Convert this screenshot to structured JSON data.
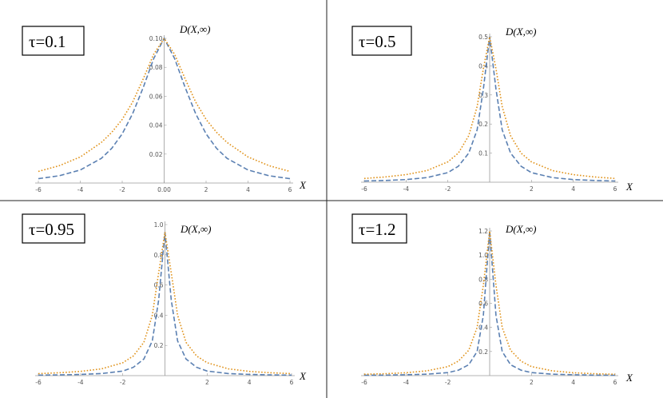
{
  "chart_data": [
    {
      "type": "line",
      "tau_label": "τ=0.1",
      "ylabel": "D(X,∞)",
      "xlabel": "X",
      "xlim": [
        -6,
        6
      ],
      "ylim": [
        0,
        0.1
      ],
      "x_ticks": [
        "-6",
        "-4",
        "-2",
        "0.00",
        "2",
        "4",
        "6"
      ],
      "y_ticks": [
        "0.02",
        "0.04",
        "0.06",
        "0.08",
        "0.10"
      ],
      "y_tick_values": [
        0.02,
        0.04,
        0.06,
        0.08,
        0.1
      ],
      "x": [
        -6,
        -5,
        -4,
        -3,
        -2.5,
        -2,
        -1.5,
        -1,
        -0.5,
        0,
        0.5,
        1,
        1.5,
        2,
        2.5,
        3,
        4,
        5,
        6
      ],
      "series": [
        {
          "color": "#5b80b2",
          "style": "dashed",
          "values": [
            0.003,
            0.005,
            0.009,
            0.017,
            0.024,
            0.034,
            0.048,
            0.066,
            0.086,
            0.1,
            0.086,
            0.066,
            0.048,
            0.034,
            0.024,
            0.017,
            0.009,
            0.005,
            0.003
          ]
        },
        {
          "color": "#e0921a",
          "style": "dotted",
          "values": [
            0.008,
            0.012,
            0.018,
            0.028,
            0.035,
            0.044,
            0.056,
            0.072,
            0.089,
            0.1,
            0.089,
            0.072,
            0.056,
            0.044,
            0.035,
            0.028,
            0.018,
            0.012,
            0.008
          ]
        }
      ]
    },
    {
      "type": "line",
      "tau_label": "τ=0.5",
      "ylabel": "D(X,∞)",
      "xlabel": "X",
      "xlim": [
        -6,
        6
      ],
      "ylim": [
        0,
        0.5
      ],
      "x_ticks": [
        "-6",
        "-4",
        "-2",
        "2",
        "4",
        "6"
      ],
      "y_ticks": [
        "0.1",
        "0.2",
        "0.3",
        "0.4",
        "0.5"
      ],
      "y_tick_values": [
        0.1,
        0.2,
        0.3,
        0.4,
        0.5
      ],
      "x": [
        -6,
        -5,
        -4,
        -3,
        -2,
        -1.5,
        -1,
        -0.6,
        -0.3,
        0,
        0.3,
        0.6,
        1,
        1.5,
        2,
        3,
        4,
        5,
        6
      ],
      "series": [
        {
          "color": "#5b80b2",
          "style": "dashed",
          "values": [
            0.004,
            0.006,
            0.009,
            0.016,
            0.033,
            0.055,
            0.1,
            0.18,
            0.32,
            0.5,
            0.32,
            0.18,
            0.1,
            0.055,
            0.033,
            0.016,
            0.009,
            0.006,
            0.004
          ]
        },
        {
          "color": "#e0921a",
          "style": "dotted",
          "values": [
            0.013,
            0.018,
            0.026,
            0.04,
            0.07,
            0.1,
            0.16,
            0.26,
            0.39,
            0.5,
            0.39,
            0.26,
            0.16,
            0.1,
            0.07,
            0.04,
            0.026,
            0.018,
            0.013
          ]
        }
      ]
    },
    {
      "type": "line",
      "tau_label": "τ=0.95",
      "ylabel": "D(X,∞)",
      "xlabel": "X",
      "xlim": [
        -6,
        6
      ],
      "ylim": [
        0,
        1.0
      ],
      "x_ticks": [
        "-6",
        "-4",
        "-2",
        "2",
        "4",
        "6"
      ],
      "y_ticks": [
        "0.2",
        "0.4",
        "0.6",
        "0.8",
        "1.0"
      ],
      "y_tick_values": [
        0.2,
        0.4,
        0.6,
        0.8,
        1.0
      ],
      "x": [
        -6,
        -5,
        -4,
        -3,
        -2,
        -1.5,
        -1,
        -0.6,
        -0.3,
        0,
        0.3,
        0.6,
        1,
        1.5,
        2,
        3,
        4,
        5,
        6
      ],
      "series": [
        {
          "color": "#5b80b2",
          "style": "dashed",
          "values": [
            0.003,
            0.005,
            0.008,
            0.014,
            0.03,
            0.055,
            0.11,
            0.23,
            0.5,
            0.95,
            0.5,
            0.23,
            0.11,
            0.055,
            0.03,
            0.014,
            0.008,
            0.005,
            0.003
          ]
        },
        {
          "color": "#e0921a",
          "style": "dotted",
          "values": [
            0.013,
            0.019,
            0.028,
            0.045,
            0.085,
            0.13,
            0.22,
            0.4,
            0.68,
            0.95,
            0.68,
            0.4,
            0.22,
            0.13,
            0.085,
            0.045,
            0.028,
            0.019,
            0.013
          ]
        }
      ]
    },
    {
      "type": "line",
      "tau_label": "τ=1.2",
      "ylabel": "D(X,∞)",
      "xlabel": "X",
      "xlim": [
        -6,
        6
      ],
      "ylim": [
        0,
        1.2
      ],
      "x_ticks": [
        "-6",
        "-4",
        "-2",
        "2",
        "4",
        "6"
      ],
      "y_ticks": [
        "0.2",
        "0.4",
        "0.6",
        "0.8",
        "1.0",
        "1.2"
      ],
      "y_tick_values": [
        0.2,
        0.4,
        0.6,
        0.8,
        1.0,
        1.2
      ],
      "x": [
        -6,
        -5,
        -4,
        -3,
        -2,
        -1.5,
        -1,
        -0.6,
        -0.3,
        0,
        0.3,
        0.6,
        1,
        1.5,
        2,
        3,
        4,
        5,
        6
      ],
      "series": [
        {
          "color": "#5b80b2",
          "style": "dashed",
          "values": [
            0.003,
            0.004,
            0.007,
            0.012,
            0.025,
            0.045,
            0.09,
            0.2,
            0.5,
            1.2,
            0.5,
            0.2,
            0.09,
            0.045,
            0.025,
            0.012,
            0.007,
            0.004,
            0.003
          ]
        },
        {
          "color": "#e0921a",
          "style": "dotted",
          "values": [
            0.011,
            0.016,
            0.024,
            0.04,
            0.075,
            0.12,
            0.21,
            0.4,
            0.75,
            1.2,
            0.75,
            0.4,
            0.21,
            0.12,
            0.075,
            0.04,
            0.024,
            0.016,
            0.011
          ]
        }
      ]
    }
  ]
}
